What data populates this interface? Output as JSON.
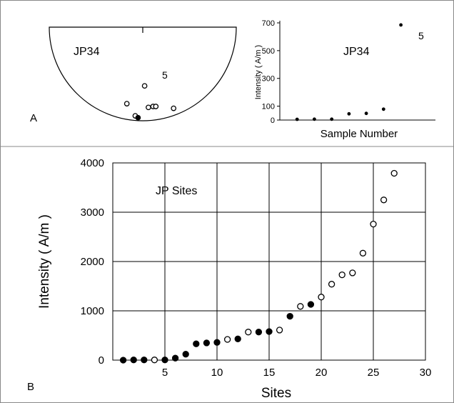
{
  "figure": {
    "panel_a_label": "A",
    "panel_b_label": "B"
  },
  "stereonet": {
    "label": "JP34",
    "point_label": "5",
    "points": [
      {
        "symbol": "open",
        "x": 0.52,
        "y": 0.43
      },
      {
        "symbol": "open",
        "x": 0.33,
        "y": 0.05
      },
      {
        "symbol": "open",
        "x": 0.42,
        "y": -0.21
      },
      {
        "symbol": "open",
        "x": 0.56,
        "y": -0.03
      },
      {
        "symbol": "open",
        "x": 0.61,
        "y": -0.01
      },
      {
        "symbol": "open",
        "x": 0.64,
        "y": -0.01
      },
      {
        "symbol": "solid",
        "x": 0.45,
        "y": -0.25
      },
      {
        "symbol": "open",
        "x": 0.83,
        "y": -0.05
      }
    ]
  },
  "chart_data": [
    {
      "type": "scatter",
      "title": "JP34",
      "xlabel": "Sample Number",
      "ylabel": "Intensity ( A/m )",
      "ylim": [
        0,
        700
      ],
      "xlim": [
        0,
        9
      ],
      "yticks": [
        0,
        100,
        300,
        500,
        700
      ],
      "x": [
        1,
        2,
        3,
        4,
        5,
        6,
        7
      ],
      "y": [
        5,
        6,
        6,
        45,
        48,
        78,
        685
      ],
      "annotations": [
        {
          "text": "5",
          "x": 7,
          "y": 685
        }
      ]
    },
    {
      "type": "scatter",
      "title": "JP Sites",
      "xlabel": "Sites",
      "ylabel": "Intensity ( A/m )",
      "xlim": [
        0,
        30
      ],
      "ylim": [
        0,
        4000
      ],
      "xticks": [
        5,
        10,
        15,
        20,
        25,
        30
      ],
      "yticks": [
        0,
        1000,
        2000,
        3000,
        4000
      ],
      "grid": true,
      "series": [
        {
          "symbol": "solid",
          "x": [
            1,
            2,
            3,
            5,
            6,
            7,
            8,
            9,
            10,
            12,
            14,
            15,
            17,
            19
          ],
          "y": [
            0,
            5,
            5,
            5,
            40,
            120,
            330,
            350,
            360,
            430,
            570,
            580,
            890,
            1130
          ]
        },
        {
          "symbol": "open",
          "x": [
            4,
            11,
            13,
            16,
            18,
            20,
            21,
            22,
            23,
            24,
            25,
            26,
            27
          ],
          "y": [
            5,
            420,
            570,
            610,
            1090,
            1280,
            1540,
            1730,
            1770,
            2170,
            2760,
            3250,
            3790
          ]
        }
      ]
    }
  ]
}
